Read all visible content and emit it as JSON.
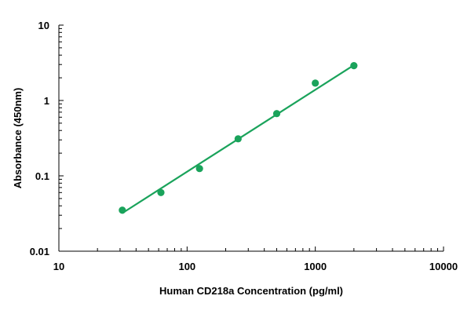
{
  "chart_data": {
    "type": "scatter",
    "title": "",
    "xlabel": "Human CD218a Concentration (pg/ml)",
    "ylabel": "Absorbance (450nm)",
    "x_scale": "log",
    "y_scale": "log",
    "xlim": [
      10,
      10000
    ],
    "ylim": [
      0.01,
      10
    ],
    "x_ticks": [
      "10",
      "100",
      "1000",
      "10000"
    ],
    "y_ticks": [
      "0.01",
      "0.1",
      "1",
      "10"
    ],
    "grid": false,
    "legend": "none",
    "series": [
      {
        "points": [
          {
            "x": 31.25,
            "y": 0.035
          },
          {
            "x": 62.5,
            "y": 0.06
          },
          {
            "x": 125,
            "y": 0.125
          },
          {
            "x": 250,
            "y": 0.31
          },
          {
            "x": 500,
            "y": 0.67
          },
          {
            "x": 1000,
            "y": 1.7
          },
          {
            "x": 2000,
            "y": 2.9
          }
        ],
        "fit_line": {
          "x": [
            31.25,
            2000
          ],
          "y": [
            0.032,
            2.95
          ]
        },
        "color": "#1aa35b"
      }
    ]
  }
}
